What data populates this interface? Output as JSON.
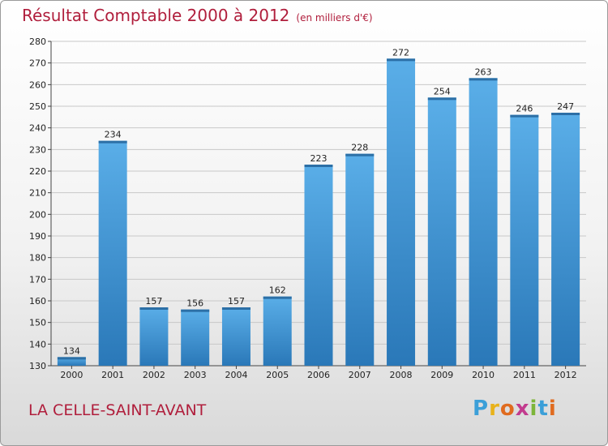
{
  "header": {
    "title": "Résultat Comptable 2000 à 2012",
    "unit": "(en milliers d'€)"
  },
  "footer": {
    "location": "LA CELLE-SAINT-AVANT",
    "brand_letters": [
      "P",
      "r",
      "o",
      "x",
      "i",
      "t",
      "i"
    ],
    "brand_colors": [
      "#3b9fd8",
      "#e8b21b",
      "#e06b1f",
      "#c23b8e",
      "#7db53a",
      "#3b9fd8",
      "#e06b1f"
    ]
  },
  "chart_data": {
    "type": "bar",
    "title": "Résultat Comptable 2000 à 2012",
    "subtitle": "(en milliers d'€)",
    "xlabel": "",
    "ylabel": "",
    "categories": [
      "2000",
      "2001",
      "2002",
      "2003",
      "2004",
      "2005",
      "2006",
      "2007",
      "2008",
      "2009",
      "2010",
      "2011",
      "2012"
    ],
    "values": [
      134,
      234,
      157,
      156,
      157,
      162,
      223,
      228,
      272,
      254,
      263,
      246,
      247
    ],
    "ylim": [
      130,
      280
    ],
    "yticks": [
      130,
      140,
      150,
      160,
      170,
      180,
      190,
      200,
      210,
      220,
      230,
      240,
      250,
      260,
      270,
      280
    ],
    "grid": true,
    "bar_color": "#3a8fd4"
  }
}
